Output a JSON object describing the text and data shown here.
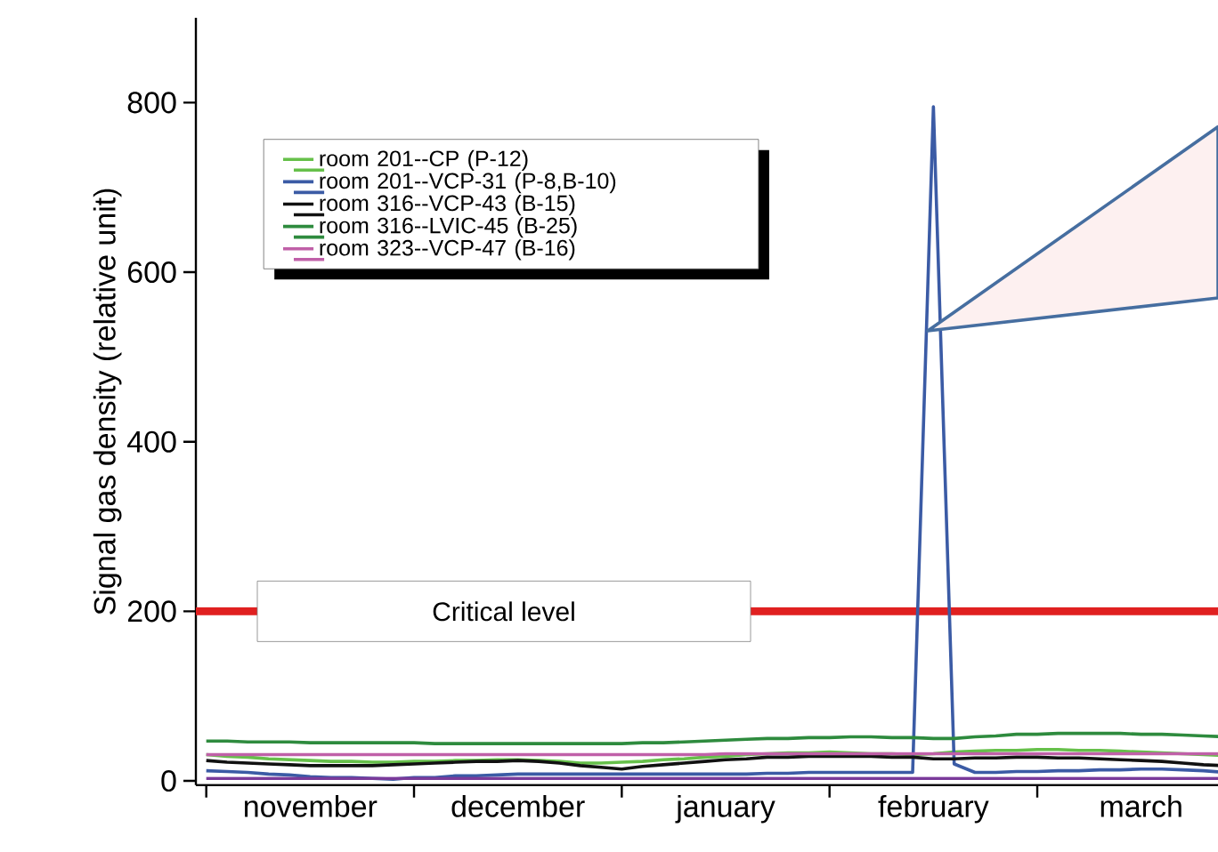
{
  "chart_data": {
    "type": "line",
    "ylabel": "Signal gas density (relative unit)",
    "categories": [
      null,
      null,
      null,
      null,
      null,
      "november",
      null,
      null,
      null,
      null,
      null,
      null,
      null,
      null,
      null,
      "december",
      null,
      null,
      null,
      null,
      null,
      null,
      null,
      null,
      null,
      "january",
      null,
      null,
      null,
      null,
      null,
      null,
      null,
      null,
      null,
      "february",
      null,
      null,
      null,
      null,
      null,
      null,
      null,
      null,
      null,
      "march",
      null,
      null,
      null,
      null
    ],
    "ylim": [
      -5,
      900
    ],
    "yticks": [
      0,
      200,
      400,
      600,
      800
    ],
    "legend": "top left",
    "ref_lines": [
      {
        "axis": "y",
        "value": 200,
        "label": "Critical level",
        "color": "#e02020"
      }
    ],
    "series": [
      {
        "name": "room 201--CP (P-12)",
        "color": "#66c04a",
        "values": [
          31,
          29,
          28,
          26,
          25,
          24,
          23,
          23,
          22,
          22,
          23,
          23,
          24,
          24,
          25,
          25,
          24,
          23,
          21,
          21,
          22,
          23,
          25,
          26,
          28,
          29,
          31,
          32,
          33,
          33,
          34,
          33,
          32,
          32,
          31,
          32,
          34,
          35,
          36,
          36,
          37,
          37,
          36,
          36,
          35,
          34,
          33,
          32,
          31,
          30
        ]
      },
      {
        "name": "room 201--VCP-31 (P-8,B-10)",
        "color": "#3b5ba5",
        "values": [
          12,
          11,
          10,
          8,
          7,
          5,
          4,
          4,
          3,
          2,
          4,
          4,
          6,
          6,
          7,
          8,
          8,
          8,
          8,
          8,
          8,
          8,
          8,
          8,
          8,
          8,
          8,
          9,
          9,
          10,
          10,
          10,
          10,
          10,
          10,
          795,
          20,
          10,
          10,
          11,
          11,
          12,
          12,
          13,
          13,
          14,
          14,
          13,
          12,
          10
        ]
      },
      {
        "name": "room 316--VCP-43 (B-15)",
        "color": "#111111",
        "values": [
          24,
          22,
          21,
          20,
          19,
          18,
          18,
          18,
          18,
          19,
          20,
          21,
          22,
          23,
          23,
          24,
          23,
          21,
          18,
          16,
          14,
          17,
          19,
          21,
          23,
          25,
          26,
          28,
          28,
          29,
          29,
          29,
          29,
          28,
          28,
          26,
          26,
          27,
          27,
          28,
          28,
          27,
          27,
          26,
          25,
          24,
          23,
          21,
          19,
          18
        ]
      },
      {
        "name": "room 316--LVIC-45 (B-25)",
        "color": "#2e8b3e",
        "values": [
          47,
          47,
          46,
          46,
          46,
          45,
          45,
          45,
          45,
          45,
          45,
          44,
          44,
          44,
          44,
          44,
          44,
          44,
          44,
          44,
          44,
          45,
          45,
          46,
          47,
          48,
          49,
          50,
          50,
          51,
          51,
          52,
          52,
          51,
          51,
          50,
          50,
          52,
          53,
          55,
          55,
          56,
          56,
          56,
          56,
          55,
          55,
          54,
          53,
          52
        ]
      },
      {
        "name": "room 323--VCP-47 (B-16)",
        "color": "#c060a8",
        "values": [
          31,
          31,
          31,
          31,
          31,
          31,
          31,
          31,
          31,
          31,
          31,
          31,
          31,
          31,
          31,
          31,
          31,
          31,
          31,
          31,
          31,
          31,
          31,
          31,
          31,
          32,
          32,
          32,
          32,
          32,
          32,
          32,
          32,
          32,
          32,
          32,
          32,
          32,
          32,
          32,
          32,
          32,
          32,
          32,
          32,
          32,
          32,
          32,
          32,
          32
        ]
      },
      {
        "color": "#7a3a9a",
        "values": [
          3,
          3,
          3,
          3,
          3,
          3,
          3,
          3,
          3,
          3,
          3,
          3,
          3,
          3,
          3,
          3,
          3,
          3,
          3,
          3,
          3,
          3,
          3,
          3,
          3,
          3,
          3,
          3,
          3,
          3,
          3,
          3,
          3,
          3,
          3,
          3,
          3,
          3,
          3,
          3,
          3,
          3,
          3,
          3,
          3,
          3,
          3,
          3,
          3,
          3
        ]
      }
    ]
  }
}
